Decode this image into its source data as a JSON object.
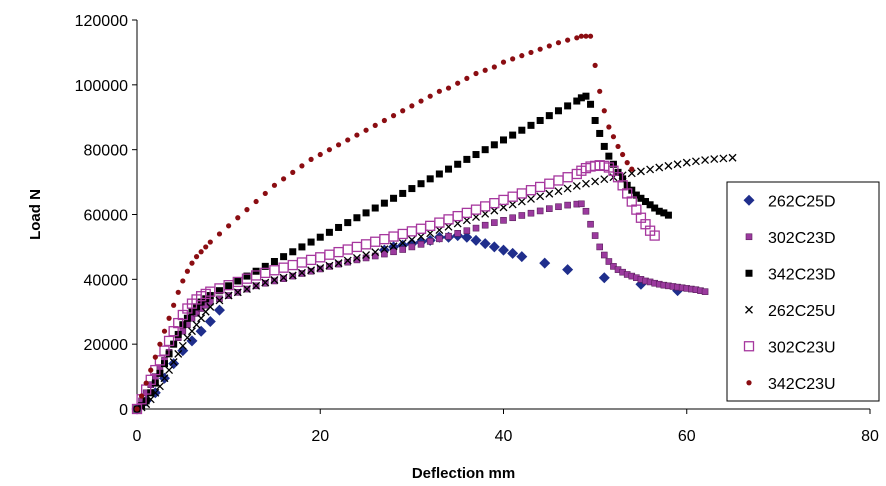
{
  "chart_data": {
    "type": "scatter",
    "xlabel": "Deflection mm",
    "ylabel": "Load N",
    "xlim": [
      0,
      80
    ],
    "ylim": [
      0,
      120000
    ],
    "x_ticks": [
      "0",
      "20",
      "40",
      "60",
      "80"
    ],
    "y_ticks": [
      "0",
      "20000",
      "40000",
      "60000",
      "80000",
      "100000",
      "120000"
    ],
    "grid": false,
    "legend_position": "right",
    "series": [
      {
        "name": "262C25D",
        "marker": "diamond",
        "color": "#1F2E8C",
        "x": [
          0,
          1,
          2,
          3,
          4,
          5,
          6,
          7,
          8,
          9,
          27,
          28,
          29,
          30,
          31,
          32,
          33,
          34,
          35,
          36,
          37,
          38,
          39,
          40,
          41,
          42,
          44.5,
          47,
          51,
          55,
          59
        ],
        "y": [
          0,
          2500,
          5000,
          9500,
          14000,
          18000,
          21000,
          24000,
          27000,
          30500,
          49000,
          50000,
          50500,
          51000,
          51500,
          52000,
          53000,
          53000,
          53500,
          53000,
          52000,
          51000,
          50000,
          49000,
          48000,
          47000,
          45000,
          43000,
          40500,
          38500,
          36500
        ]
      },
      {
        "name": "302C23D",
        "marker": "square-small",
        "color": "#9B3A9E",
        "x": [
          0,
          0.5,
          1,
          1.5,
          2,
          2.5,
          3,
          3.5,
          4,
          4.5,
          5,
          5.5,
          6,
          6.5,
          7,
          7.5,
          8,
          9,
          10,
          11,
          12,
          13,
          14,
          15,
          16,
          17,
          18,
          19,
          20,
          21,
          22,
          23,
          24,
          25,
          26,
          27,
          28,
          29,
          30,
          31,
          32,
          33,
          34,
          35,
          36,
          37,
          38,
          39,
          40,
          41,
          42,
          43,
          44,
          45,
          46,
          47,
          48,
          48.5,
          49,
          49.5,
          50,
          50.5,
          51,
          51.5,
          52,
          52.5,
          53,
          53.5,
          54,
          54.5,
          55,
          55.5,
          56,
          56.5,
          57,
          57.5,
          58,
          58.5,
          59,
          59.5,
          60,
          60.5,
          61,
          61.5,
          62
        ],
        "y": [
          0,
          2500,
          5000,
          7500,
          10000,
          12500,
          15000,
          17500,
          20000,
          22000,
          24000,
          26000,
          28000,
          29500,
          31000,
          32000,
          33000,
          34000,
          35000,
          36000,
          37000,
          38000,
          38800,
          39500,
          40200,
          41000,
          41800,
          42500,
          43200,
          44000,
          44700,
          45300,
          46000,
          46600,
          47200,
          47800,
          48500,
          49200,
          50000,
          50800,
          51700,
          52500,
          53300,
          54200,
          55000,
          55800,
          56700,
          57500,
          58200,
          59000,
          59700,
          60400,
          61100,
          61800,
          62400,
          62900,
          63200,
          63300,
          61000,
          57000,
          53500,
          50000,
          47500,
          45500,
          44000,
          43000,
          42200,
          41500,
          41000,
          40500,
          40000,
          39500,
          39200,
          38800,
          38500,
          38200,
          38000,
          37800,
          37600,
          37400,
          37200,
          37000,
          36800,
          36500,
          36200
        ]
      },
      {
        "name": "342C23D",
        "marker": "square",
        "color": "#000000",
        "x": [
          0,
          0.5,
          1,
          1.5,
          2,
          2.5,
          3,
          3.5,
          4,
          4.5,
          5,
          5.5,
          6,
          6.5,
          7,
          7.5,
          8,
          9,
          10,
          11,
          12,
          13,
          14,
          15,
          16,
          17,
          18,
          19,
          20,
          21,
          22,
          23,
          24,
          25,
          26,
          27,
          28,
          29,
          30,
          31,
          32,
          33,
          34,
          35,
          36,
          37,
          38,
          39,
          40,
          41,
          42,
          43,
          44,
          45,
          46,
          47,
          48,
          48.5,
          49,
          49.5,
          50,
          50.5,
          51,
          51.5,
          52,
          52.5,
          53,
          53.5,
          54,
          54.5,
          55,
          55.5,
          56,
          56.5,
          57,
          57.5,
          58
        ],
        "y": [
          0,
          1000,
          2500,
          5000,
          8000,
          11000,
          14000,
          17000,
          20000,
          23000,
          26000,
          28000,
          30000,
          31500,
          33000,
          34000,
          35000,
          36500,
          38000,
          39500,
          41000,
          42500,
          44000,
          45500,
          47000,
          48500,
          50000,
          51500,
          53000,
          54500,
          56000,
          57500,
          59000,
          60500,
          62000,
          63500,
          65000,
          66500,
          68000,
          69500,
          71000,
          72500,
          74000,
          75500,
          77000,
          78500,
          80000,
          81500,
          83000,
          84500,
          86000,
          87500,
          89000,
          90500,
          92000,
          93500,
          95000,
          96000,
          96500,
          94000,
          89000,
          85000,
          81000,
          78000,
          75500,
          73000,
          71000,
          69000,
          67500,
          66000,
          65000,
          64000,
          63000,
          62000,
          61000,
          60500,
          59800
        ]
      },
      {
        "name": "262C25U",
        "marker": "x",
        "color": "#000000",
        "x": [
          0,
          0.5,
          1,
          1.5,
          2,
          2.5,
          3,
          3.5,
          4,
          4.5,
          5,
          5.5,
          6,
          6.5,
          7,
          7.5,
          8,
          9,
          10,
          11,
          12,
          13,
          14,
          15,
          16,
          17,
          18,
          19,
          20,
          21,
          22,
          23,
          24,
          25,
          26,
          27,
          28,
          29,
          30,
          31,
          32,
          33,
          34,
          35,
          36,
          37,
          38,
          39,
          40,
          41,
          42,
          43,
          44,
          45,
          46,
          47,
          48,
          49,
          50,
          51,
          52,
          53,
          54,
          55,
          56,
          57,
          58,
          59,
          60,
          61,
          62,
          63,
          64,
          65
        ],
        "y": [
          0,
          500,
          1500,
          3000,
          5000,
          7000,
          9500,
          12000,
          14500,
          17000,
          19500,
          22000,
          24000,
          26000,
          28000,
          30000,
          31500,
          33500,
          35000,
          36000,
          37000,
          38000,
          39000,
          39800,
          40500,
          41200,
          42000,
          42800,
          43500,
          44200,
          45000,
          45800,
          46600,
          47500,
          48400,
          49300,
          50200,
          51200,
          52200,
          53200,
          54200,
          55200,
          56200,
          57200,
          58200,
          59200,
          60200,
          61200,
          62200,
          63100,
          64000,
          64800,
          65600,
          66400,
          67200,
          68000,
          68800,
          69500,
          70200,
          70900,
          71500,
          72100,
          72700,
          73300,
          73900,
          74500,
          75000,
          75500,
          76000,
          76400,
          76800,
          77100,
          77300,
          77500
        ]
      },
      {
        "name": "302C23U",
        "marker": "square-open",
        "color": "#A6379E",
        "x": [
          0,
          0.5,
          1,
          1.5,
          2,
          2.5,
          3,
          3.5,
          4,
          4.5,
          5,
          5.5,
          6,
          6.5,
          7,
          7.5,
          8,
          9,
          10,
          11,
          12,
          13,
          14,
          15,
          16,
          17,
          18,
          19,
          20,
          21,
          22,
          23,
          24,
          25,
          26,
          27,
          28,
          29,
          30,
          31,
          32,
          33,
          34,
          35,
          36,
          37,
          38,
          39,
          40,
          41,
          42,
          43,
          44,
          45,
          46,
          47,
          48,
          48.5,
          49,
          49.5,
          50,
          50.5,
          51,
          51.5,
          52,
          52.5,
          53,
          53.5,
          54,
          54.5,
          55,
          55.5,
          56,
          56.5
        ],
        "y": [
          0,
          3000,
          6000,
          9000,
          12000,
          15000,
          18000,
          21000,
          24000,
          26500,
          29000,
          31000,
          32500,
          33800,
          34800,
          35500,
          36200,
          37200,
          38200,
          39200,
          40200,
          41200,
          42000,
          42800,
          43600,
          44400,
          45200,
          46000,
          46800,
          47600,
          48400,
          49200,
          50000,
          50800,
          51600,
          52400,
          53200,
          54000,
          54800,
          55600,
          56500,
          57500,
          58500,
          59500,
          60500,
          61500,
          62500,
          63500,
          64500,
          65500,
          66500,
          67500,
          68500,
          69500,
          70500,
          71500,
          72500,
          73500,
          74300,
          74800,
          75000,
          75200,
          75000,
          74500,
          73500,
          71500,
          69000,
          66500,
          64000,
          61500,
          59000,
          57000,
          55000,
          53500
        ]
      },
      {
        "name": "342C23U",
        "marker": "dot",
        "color": "#8B0D12",
        "x": [
          0,
          0.5,
          1,
          1.5,
          2,
          2.5,
          3,
          3.5,
          4,
          4.5,
          5,
          5.5,
          6,
          6.5,
          7,
          7.5,
          8,
          9,
          10,
          11,
          12,
          13,
          14,
          15,
          16,
          17,
          18,
          19,
          20,
          21,
          22,
          23,
          24,
          25,
          26,
          27,
          28,
          29,
          30,
          31,
          32,
          33,
          34,
          35,
          36,
          37,
          38,
          39,
          40,
          41,
          42,
          43,
          44,
          45,
          46,
          47,
          48,
          48.5,
          49,
          49.5,
          50,
          50.5,
          51,
          51.5,
          52,
          52.5,
          53,
          53.5,
          54
        ],
        "y": [
          0,
          4000,
          8000,
          12000,
          16000,
          20000,
          24000,
          28000,
          32000,
          36000,
          39500,
          42500,
          45000,
          47000,
          48500,
          50000,
          51500,
          54000,
          56500,
          59000,
          61500,
          64000,
          66500,
          69000,
          71000,
          73000,
          75000,
          77000,
          78500,
          80000,
          81500,
          83000,
          84500,
          86000,
          87500,
          89000,
          90500,
          92000,
          93500,
          95000,
          96500,
          98000,
          99000,
          100500,
          102000,
          103500,
          104500,
          105500,
          107000,
          108000,
          109000,
          110000,
          111000,
          112000,
          113000,
          113800,
          114500,
          115000,
          115000,
          115000,
          106000,
          98000,
          92000,
          87000,
          84000,
          81000,
          78500,
          76000,
          74000
        ]
      }
    ]
  }
}
